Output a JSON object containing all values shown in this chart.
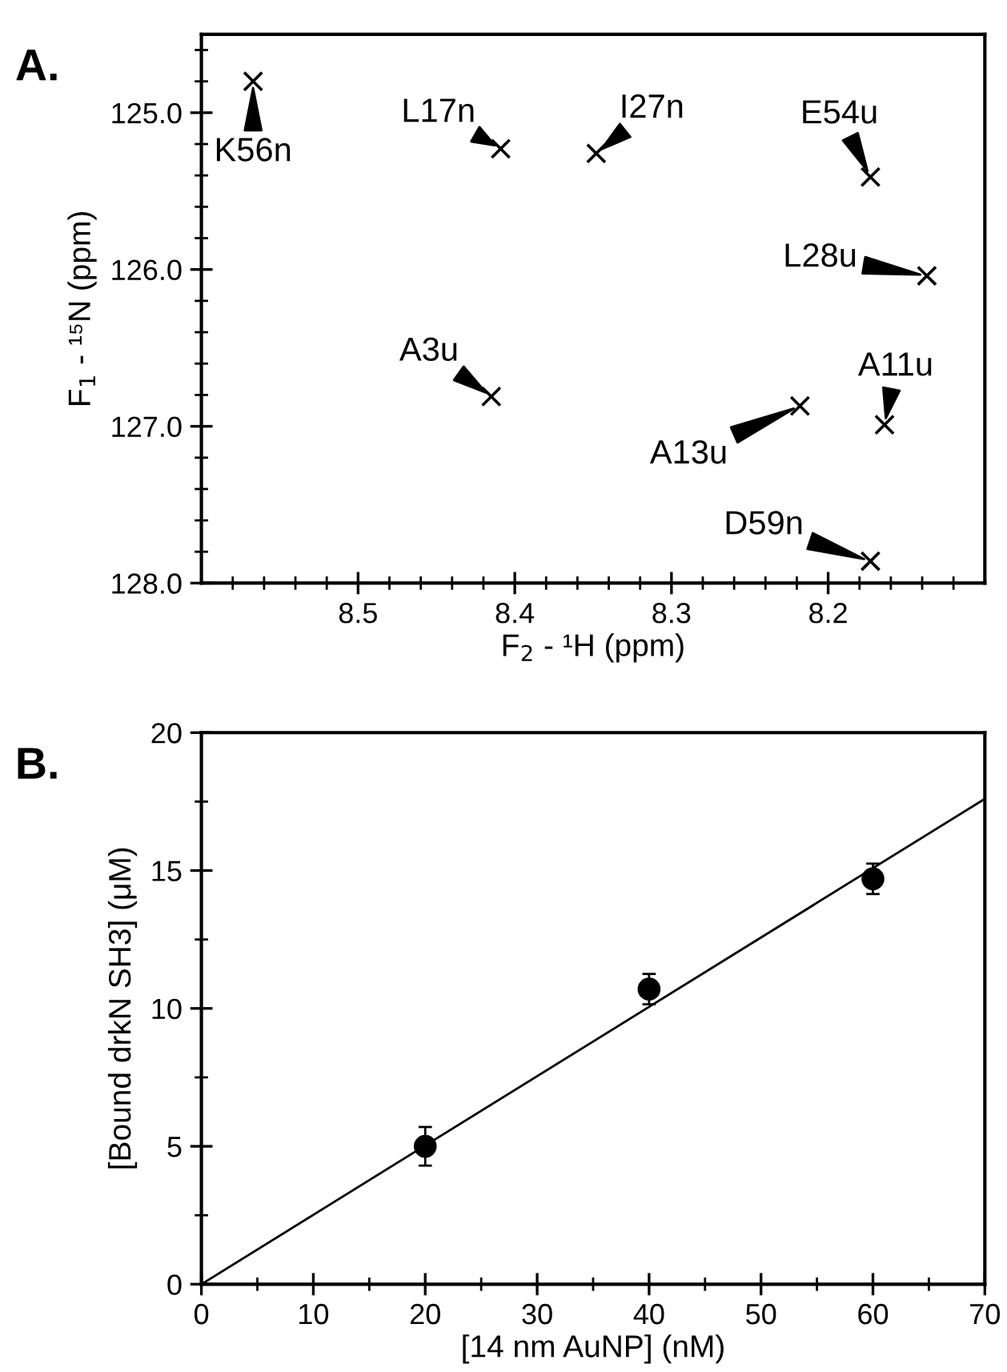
{
  "chart_data": [
    {
      "type": "scatter",
      "title": "A.",
      "xlabel": "F$_{2}$ - ¹H (ppm)",
      "ylabel": "F$_{1}$ - ¹⁵N (ppm)",
      "marker": "cross",
      "grid": false,
      "xlim": [
        8.6,
        8.1
      ],
      "ylim": [
        128.0,
        124.5
      ],
      "xticks": [
        {
          "value": 8.58,
          "label": null
        },
        {
          "value": 8.56,
          "label": null
        },
        {
          "value": 8.54,
          "label": null
        },
        {
          "value": 8.52,
          "label": null
        },
        8.5,
        {
          "value": 8.48,
          "label": null
        },
        {
          "value": 8.46,
          "label": null
        },
        {
          "value": 8.44,
          "label": null
        },
        {
          "value": 8.42,
          "label": null
        },
        8.4,
        {
          "value": 8.38,
          "label": null
        },
        {
          "value": 8.36,
          "label": null
        },
        {
          "value": 8.34,
          "label": null
        },
        {
          "value": 8.32,
          "label": null
        },
        8.3,
        {
          "value": 8.28,
          "label": null
        },
        {
          "value": 8.26,
          "label": null
        },
        {
          "value": 8.24,
          "label": null
        },
        {
          "value": 8.22,
          "label": null
        },
        8.2,
        {
          "value": 8.18,
          "label": null
        },
        {
          "value": 8.16,
          "label": null
        },
        {
          "value": 8.14,
          "label": null
        },
        {
          "value": 8.12,
          "label": null
        }
      ],
      "yticks": [
        {
          "value": 124.6,
          "label": null
        },
        {
          "value": 124.8,
          "label": null
        },
        {
          "value": 125.0,
          "label": "125.0"
        },
        {
          "value": 125.2,
          "label": null
        },
        {
          "value": 125.4,
          "label": null
        },
        {
          "value": 125.6,
          "label": null
        },
        {
          "value": 125.8,
          "label": null
        },
        {
          "value": 126.0,
          "label": "126.0"
        },
        {
          "value": 126.2,
          "label": null
        },
        {
          "value": 126.4,
          "label": null
        },
        {
          "value": 126.6,
          "label": null
        },
        {
          "value": 126.8,
          "label": null
        },
        {
          "value": 127.0,
          "label": "127.0"
        },
        {
          "value": 127.2,
          "label": null
        },
        {
          "value": 127.4,
          "label": null
        },
        {
          "value": 127.6,
          "label": null
        },
        {
          "value": 127.8,
          "label": null
        },
        {
          "value": 128.0,
          "label": "128.0"
        }
      ],
      "series": [
        {
          "color": "#000000",
          "x": [
            8.567,
            8.409,
            8.348,
            8.173,
            8.137,
            8.415,
            8.218,
            8.164,
            8.173
          ],
          "values": [
            124.8,
            125.23,
            125.26,
            125.41,
            126.04,
            126.81,
            126.87,
            126.99,
            127.86
          ]
        }
      ],
      "annotations": [
        {
          "text": "K56n",
          "x": 8.567,
          "y": 124.8
        },
        {
          "text": "L17n",
          "x": 8.409,
          "y": 125.23
        },
        {
          "text": "I27n",
          "x": 8.348,
          "y": 125.26
        },
        {
          "text": "E54u",
          "x": 8.173,
          "y": 125.41
        },
        {
          "text": "L28u",
          "x": 8.137,
          "y": 126.04
        },
        {
          "text": "A3u",
          "x": 8.415,
          "y": 126.81
        },
        {
          "text": "A13u",
          "x": 8.218,
          "y": 126.87
        },
        {
          "text": "A11u",
          "x": 8.164,
          "y": 126.99
        },
        {
          "text": "D59n",
          "x": 8.173,
          "y": 127.86
        }
      ]
    },
    {
      "type": "scatter",
      "title": "B.",
      "xlabel": "[14 nm AuNP] (nM)",
      "ylabel": "[Bound drkN SH3] (μM)",
      "grid": false,
      "xlim": [
        0,
        70
      ],
      "ylim": [
        0,
        20
      ],
      "xticks": [
        0,
        {
          "value": 5,
          "label": null
        },
        10,
        {
          "value": 15,
          "label": null
        },
        20,
        {
          "value": 25,
          "label": null
        },
        30,
        {
          "value": 35,
          "label": null
        },
        40,
        {
          "value": 45,
          "label": null
        },
        50,
        {
          "value": 55,
          "label": null
        },
        60,
        {
          "value": 65,
          "label": null
        },
        70
      ],
      "yticks": [
        0,
        {
          "value": 2.5,
          "label": null
        },
        5,
        {
          "value": 7.5,
          "label": null
        },
        10,
        {
          "value": 12.5,
          "label": null
        },
        15,
        {
          "value": 17.5,
          "label": null
        },
        20
      ],
      "series": [
        {
          "type": "scatter",
          "marker": "circle",
          "color": "#000000",
          "x": [
            20,
            40,
            60
          ],
          "values": [
            5.0,
            10.7,
            14.7
          ],
          "errors": [
            0.7,
            0.55,
            0.55
          ]
        },
        {
          "type": "line",
          "color": "#000000",
          "x": [
            0,
            70
          ],
          "values": [
            0,
            17.6
          ]
        }
      ]
    }
  ]
}
